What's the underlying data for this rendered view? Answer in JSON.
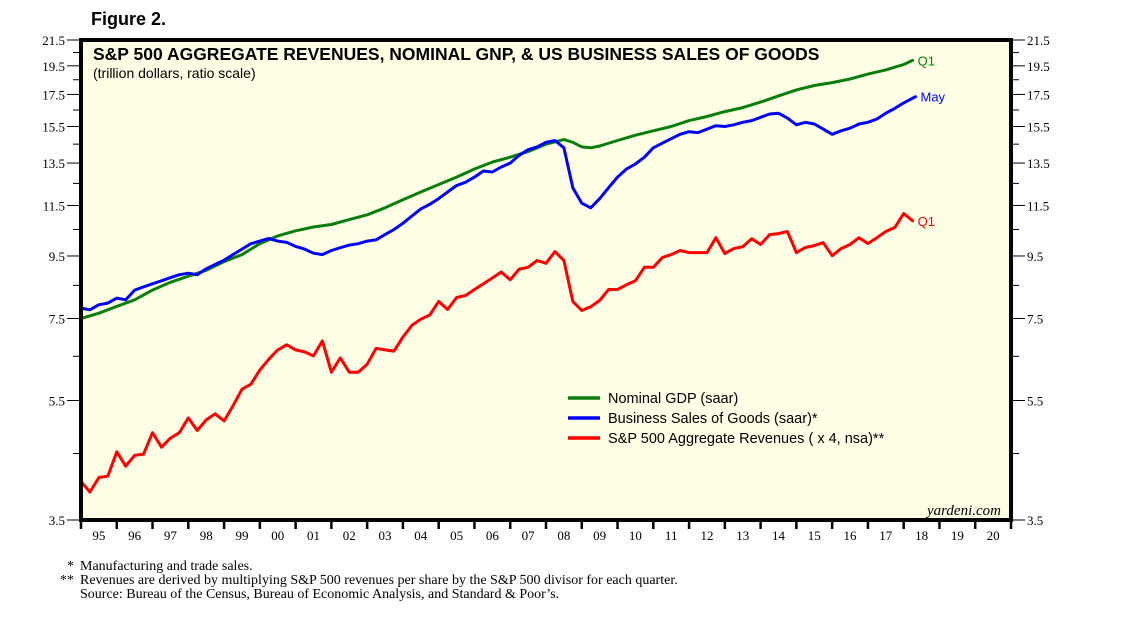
{
  "figure_label": "Figure 2.",
  "chart_data": {
    "type": "line",
    "title": "S&P 500 AGGREGATE REVENUES, NOMINAL GNP, & US BUSINESS SALES OF GOODS",
    "subtitle": "(trillion dollars, ratio scale)",
    "xlabel": "",
    "ylabel": "",
    "y_scale": "log",
    "ylim": [
      3.5,
      21.5
    ],
    "xlim": [
      1995,
      2021
    ],
    "y_ticks": [
      3.5,
      5.5,
      7.5,
      9.5,
      11.5,
      13.5,
      15.5,
      17.5,
      19.5,
      21.5
    ],
    "y_tick_labels": [
      "3.5",
      "5.5",
      "7.5",
      "9.5",
      "11.5",
      "13.5",
      "15.5",
      "17.5",
      "19.5",
      "21.5"
    ],
    "y_minor_ticks": [
      4.5,
      6.5,
      8.5,
      10.5,
      12.5,
      14.5,
      16.5,
      18.5,
      20.5
    ],
    "x_tick_labels": [
      "95",
      "96",
      "97",
      "98",
      "99",
      "00",
      "01",
      "02",
      "03",
      "04",
      "05",
      "06",
      "07",
      "08",
      "09",
      "10",
      "11",
      "12",
      "13",
      "14",
      "15",
      "16",
      "17",
      "18",
      "19",
      "20"
    ],
    "grid": false,
    "legend_position": "bottom-right",
    "watermark": "yardeni.com",
    "series": [
      {
        "name": "Nominal GDP (saar)",
        "color": "#0a7d0a",
        "end_label": "Q1",
        "x": [
          1995.0,
          1995.5,
          1996.0,
          1996.5,
          1997.0,
          1997.5,
          1998.0,
          1998.5,
          1999.0,
          1999.5,
          2000.0,
          2000.5,
          2001.0,
          2001.5,
          2002.0,
          2002.5,
          2003.0,
          2003.5,
          2004.0,
          2004.5,
          2005.0,
          2005.5,
          2006.0,
          2006.5,
          2007.0,
          2007.5,
          2008.0,
          2008.5,
          2008.75,
          2009.0,
          2009.25,
          2009.5,
          2010.0,
          2010.5,
          2011.0,
          2011.5,
          2012.0,
          2012.5,
          2013.0,
          2013.5,
          2014.0,
          2014.5,
          2015.0,
          2015.5,
          2016.0,
          2016.5,
          2017.0,
          2017.5,
          2018.0,
          2018.25
        ],
        "values": [
          7.5,
          7.65,
          7.85,
          8.05,
          8.35,
          8.6,
          8.8,
          9.0,
          9.3,
          9.55,
          9.95,
          10.25,
          10.45,
          10.6,
          10.7,
          10.9,
          11.1,
          11.4,
          11.75,
          12.1,
          12.45,
          12.8,
          13.2,
          13.55,
          13.8,
          14.1,
          14.5,
          14.75,
          14.6,
          14.35,
          14.3,
          14.4,
          14.7,
          15.0,
          15.25,
          15.5,
          15.85,
          16.1,
          16.4,
          16.65,
          17.0,
          17.4,
          17.8,
          18.1,
          18.3,
          18.55,
          18.9,
          19.2,
          19.6,
          19.9
        ]
      },
      {
        "name": "Business Sales of Goods (saar)*",
        "color": "#0000ff",
        "end_label": "May",
        "x": [
          1995.0,
          1995.25,
          1995.5,
          1995.75,
          1996.0,
          1996.25,
          1996.5,
          1996.75,
          1997.0,
          1997.25,
          1997.5,
          1997.75,
          1998.0,
          1998.25,
          1998.5,
          1998.75,
          1999.0,
          1999.25,
          1999.5,
          1999.75,
          2000.0,
          2000.25,
          2000.5,
          2000.75,
          2001.0,
          2001.25,
          2001.5,
          2001.75,
          2002.0,
          2002.25,
          2002.5,
          2002.75,
          2003.0,
          2003.25,
          2003.5,
          2003.75,
          2004.0,
          2004.25,
          2004.5,
          2004.75,
          2005.0,
          2005.25,
          2005.5,
          2005.75,
          2006.0,
          2006.25,
          2006.5,
          2006.75,
          2007.0,
          2007.25,
          2007.5,
          2007.75,
          2008.0,
          2008.25,
          2008.5,
          2008.75,
          2009.0,
          2009.25,
          2009.5,
          2009.75,
          2010.0,
          2010.25,
          2010.5,
          2010.75,
          2011.0,
          2011.25,
          2011.5,
          2011.75,
          2012.0,
          2012.25,
          2012.5,
          2012.75,
          2013.0,
          2013.25,
          2013.5,
          2013.75,
          2014.0,
          2014.25,
          2014.5,
          2014.75,
          2015.0,
          2015.25,
          2015.5,
          2015.75,
          2016.0,
          2016.25,
          2016.5,
          2016.75,
          2017.0,
          2017.25,
          2017.5,
          2017.75,
          2018.0,
          2018.33
        ],
        "values": [
          7.8,
          7.75,
          7.9,
          7.95,
          8.1,
          8.05,
          8.35,
          8.45,
          8.55,
          8.65,
          8.75,
          8.85,
          8.9,
          8.85,
          9.05,
          9.2,
          9.35,
          9.55,
          9.75,
          9.95,
          10.05,
          10.15,
          10.05,
          10.0,
          9.85,
          9.75,
          9.6,
          9.55,
          9.7,
          9.8,
          9.9,
          9.95,
          10.05,
          10.1,
          10.3,
          10.5,
          10.75,
          11.05,
          11.35,
          11.55,
          11.8,
          12.1,
          12.4,
          12.55,
          12.8,
          13.1,
          13.05,
          13.3,
          13.5,
          13.9,
          14.2,
          14.35,
          14.6,
          14.7,
          14.3,
          12.3,
          11.6,
          11.4,
          11.8,
          12.3,
          12.8,
          13.2,
          13.45,
          13.8,
          14.3,
          14.55,
          14.8,
          15.05,
          15.2,
          15.15,
          15.35,
          15.55,
          15.5,
          15.6,
          15.75,
          15.85,
          16.05,
          16.25,
          16.3,
          16.0,
          15.6,
          15.75,
          15.65,
          15.35,
          15.05,
          15.25,
          15.4,
          15.65,
          15.75,
          15.95,
          16.3,
          16.6,
          16.95,
          17.35
        ]
      },
      {
        "name": "S&P 500 Aggregate Revenues ( x 4, nsa)**",
        "color": "#ff0000",
        "end_label": "Q1",
        "x": [
          1995.0,
          1995.25,
          1995.5,
          1995.75,
          1996.0,
          1996.25,
          1996.5,
          1996.75,
          1997.0,
          1997.25,
          1997.5,
          1997.75,
          1998.0,
          1998.25,
          1998.5,
          1998.75,
          1999.0,
          1999.25,
          1999.5,
          1999.75,
          2000.0,
          2000.25,
          2000.5,
          2000.75,
          2001.0,
          2001.25,
          2001.5,
          2001.75,
          2002.0,
          2002.25,
          2002.5,
          2002.75,
          2003.0,
          2003.25,
          2003.5,
          2003.75,
          2004.0,
          2004.25,
          2004.5,
          2004.75,
          2005.0,
          2005.25,
          2005.5,
          2005.75,
          2006.0,
          2006.25,
          2006.5,
          2006.75,
          2007.0,
          2007.25,
          2007.5,
          2007.75,
          2008.0,
          2008.25,
          2008.5,
          2008.75,
          2009.0,
          2009.25,
          2009.5,
          2009.75,
          2010.0,
          2010.25,
          2010.5,
          2010.75,
          2011.0,
          2011.25,
          2011.5,
          2011.75,
          2012.0,
          2012.25,
          2012.5,
          2012.75,
          2013.0,
          2013.25,
          2013.5,
          2013.75,
          2014.0,
          2014.25,
          2014.5,
          2014.75,
          2015.0,
          2015.25,
          2015.5,
          2015.75,
          2016.0,
          2016.25,
          2016.5,
          2016.75,
          2017.0,
          2017.25,
          2017.5,
          2017.75,
          2018.0,
          2018.25
        ],
        "values": [
          4.05,
          3.89,
          4.11,
          4.13,
          4.53,
          4.29,
          4.47,
          4.49,
          4.87,
          4.61,
          4.77,
          4.87,
          5.15,
          4.91,
          5.11,
          5.23,
          5.09,
          5.39,
          5.74,
          5.85,
          6.17,
          6.43,
          6.66,
          6.79,
          6.66,
          6.61,
          6.51,
          6.89,
          6.12,
          6.46,
          6.12,
          6.12,
          6.31,
          6.7,
          6.66,
          6.63,
          6.99,
          7.31,
          7.48,
          7.6,
          8.0,
          7.76,
          8.12,
          8.18,
          8.37,
          8.55,
          8.74,
          8.94,
          8.68,
          9.04,
          9.1,
          9.34,
          9.24,
          9.66,
          9.34,
          8.0,
          7.73,
          7.84,
          8.03,
          8.37,
          8.37,
          8.52,
          8.65,
          9.1,
          9.1,
          9.44,
          9.55,
          9.7,
          9.62,
          9.62,
          9.62,
          10.18,
          9.59,
          9.77,
          9.84,
          10.14,
          9.92,
          10.3,
          10.34,
          10.42,
          9.62,
          9.81,
          9.88,
          9.99,
          9.51,
          9.77,
          9.92,
          10.18,
          9.96,
          10.18,
          10.42,
          10.58,
          11.15,
          10.85
        ]
      }
    ]
  },
  "footnotes": [
    {
      "mark": "*",
      "text": "Manufacturing and trade sales."
    },
    {
      "mark": "**",
      "text": "Revenues are derived by multiplying S&P 500 revenues per share by the S&P 500 divisor for each quarter."
    },
    {
      "mark": "",
      "text": "Source: Bureau of the Census, Bureau of Economic Analysis, and Standard & Poor’s."
    }
  ],
  "colors": {
    "plot_background": "#ffffe6",
    "frame": "#000000"
  }
}
